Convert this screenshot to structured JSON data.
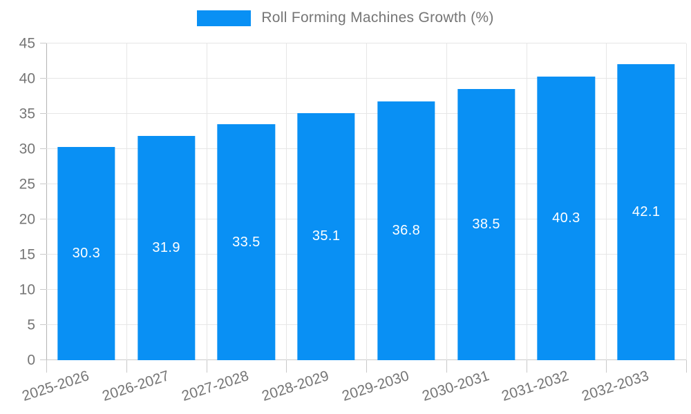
{
  "chart_data": {
    "type": "bar",
    "title": "Roll Forming Machines Growth (%)",
    "categories": [
      "2025-2026",
      "2026-2027",
      "2027-2028",
      "2028-2029",
      "2029-2030",
      "2030-2031",
      "2031-2032",
      "2032-2033"
    ],
    "values": [
      30.3,
      31.9,
      33.5,
      35.1,
      36.8,
      38.5,
      40.3,
      42.1
    ],
    "value_labels": [
      "30.3",
      "31.9",
      "33.5",
      "35.1",
      "36.8",
      "38.5",
      "40.3",
      "42.1"
    ],
    "ylabel": "",
    "xlabel": "",
    "ylim": [
      0,
      45
    ],
    "ytick_step": 5,
    "legend_position": "top",
    "grid": "on",
    "colors": {
      "bar": "#0990f4",
      "value_label_text": "#ffffff",
      "axis_text": "#757575",
      "gridline": "#e6e6e6",
      "axis_line": "#b3b3b3",
      "tick_line": "#c9c9c9",
      "background": "#ffffff"
    }
  }
}
